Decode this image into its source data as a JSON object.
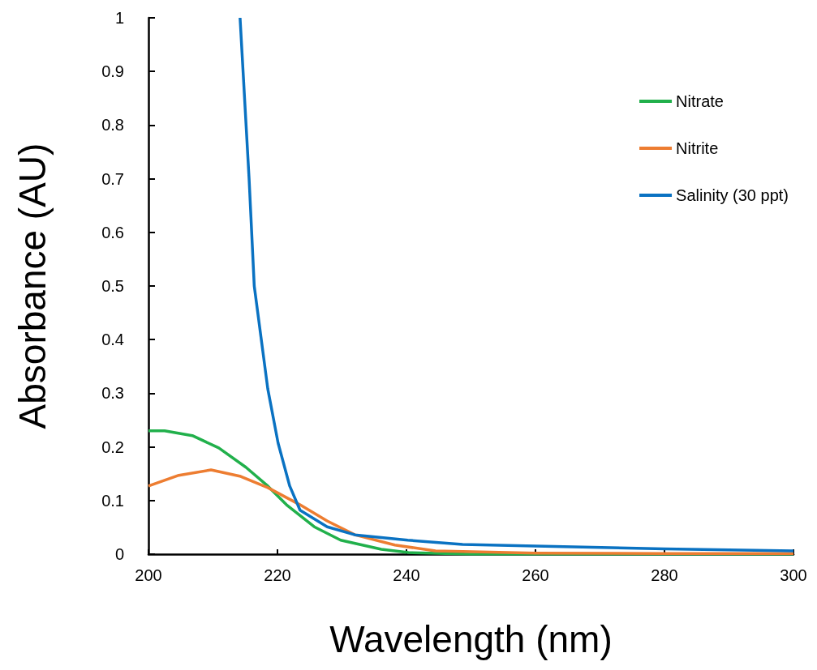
{
  "chart_data": {
    "type": "line",
    "xlabel": "Wavelength (nm)",
    "ylabel": "Absorbance (AU)",
    "xlim": [
      200,
      300
    ],
    "xticks": [
      200,
      220,
      240,
      260,
      280,
      300
    ],
    "ylim": [
      0,
      1
    ],
    "yticks": [
      0,
      0.1,
      0.2,
      0.3,
      0.4,
      0.5,
      0.6,
      0.7,
      0.8,
      0.9,
      1
    ],
    "grid": false,
    "legend": "top right",
    "marker": "none",
    "line_style": "solid",
    "series": [
      {
        "name": "Nitrate",
        "color": "#21b04b",
        "x": [
          200,
          202.5,
          206.8,
          210.9,
          215.1,
          218.5,
          221.4,
          225.7,
          229.8,
          236.1,
          240.3,
          250,
          260,
          280,
          300
        ],
        "values": [
          0.23,
          0.23,
          0.221,
          0.198,
          0.162,
          0.127,
          0.092,
          0.051,
          0.026,
          0.009,
          0.003,
          0,
          0,
          0,
          0
        ]
      },
      {
        "name": "Nitrite",
        "color": "#ed7d31",
        "x": [
          200,
          204.7,
          209.7,
          214.3,
          218.5,
          223.5,
          227.7,
          232,
          238.2,
          244.5,
          260,
          280,
          300
        ],
        "values": [
          0.127,
          0.147,
          0.157,
          0.145,
          0.124,
          0.092,
          0.062,
          0.036,
          0.017,
          0.006,
          0.002,
          0.001,
          0.001
        ]
      },
      {
        "name": "Salinity (30 ppt)",
        "color": "#0a72c2",
        "x": [
          214.2,
          215.6,
          216.4,
          218.5,
          220.1,
          221.9,
          223.5,
          227.7,
          232,
          240.2,
          248.7,
          260,
          280,
          300
        ],
        "values": [
          1,
          0.7,
          0.5,
          0.308,
          0.207,
          0.127,
          0.082,
          0.051,
          0.036,
          0.026,
          0.018,
          0.015,
          0.01,
          0.006
        ]
      }
    ]
  }
}
